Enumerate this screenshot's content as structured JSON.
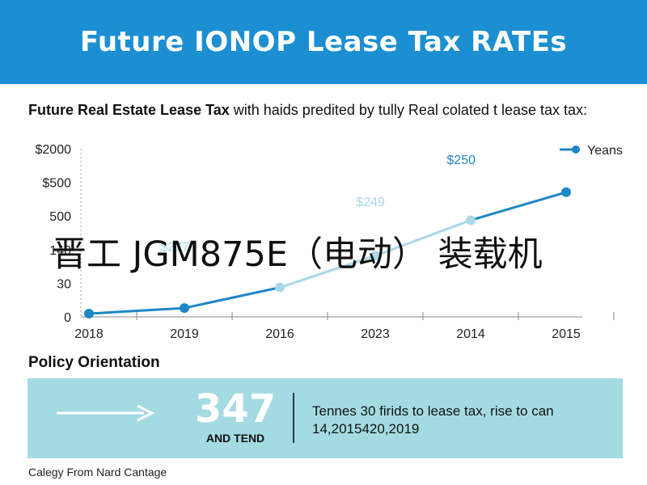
{
  "banner": {
    "title": "Future IONOP Lease Tax RATEs"
  },
  "subtitle": {
    "bold": "Future Real Estate Lease Tax",
    "rest": " with haids predited by tully Real colated t lease tax tax:"
  },
  "overlay": {
    "text": "晋工 JGM875E（电动） 装载机"
  },
  "chart_data": {
    "type": "line",
    "categories": [
      "2018",
      "2019",
      "2016",
      "2023",
      "2014",
      "2015"
    ],
    "y_tick_labels": [
      "$2000",
      "$500",
      "500",
      "140",
      "30",
      "0"
    ],
    "series": [
      {
        "name": "Yeans",
        "values": [
          0,
          30,
          140,
          310,
          500,
          650
        ],
        "color": "#1e87c6"
      }
    ],
    "secondary_segments_color": "#a9d8ea",
    "data_labels": [
      {
        "text": "$277",
        "color": "#a9d8ea",
        "x": 0.9,
        "y": 335
      },
      {
        "text": "$249",
        "color": "#a9d8ea",
        "x": 2.95,
        "y": 575
      },
      {
        "text": "$250",
        "color": "#1e87c6",
        "x": 3.9,
        "y": 800
      }
    ],
    "legend": {
      "position": "top-right",
      "label": "Yeans"
    },
    "grid": false
  },
  "policy": {
    "title": "Policy Orientation",
    "stat_number": "347",
    "stat_label": "AND TEND",
    "description": "Tennes 30 firids to lease tax, rise to can 14,2015420,2019"
  },
  "footer": {
    "text": "Calegy From Nard Cantage"
  },
  "colors": {
    "banner": "#1b8fd2",
    "line_dark": "#1e87c6",
    "line_light": "#a9d8ea",
    "policy_box": "#a4dbe3"
  }
}
